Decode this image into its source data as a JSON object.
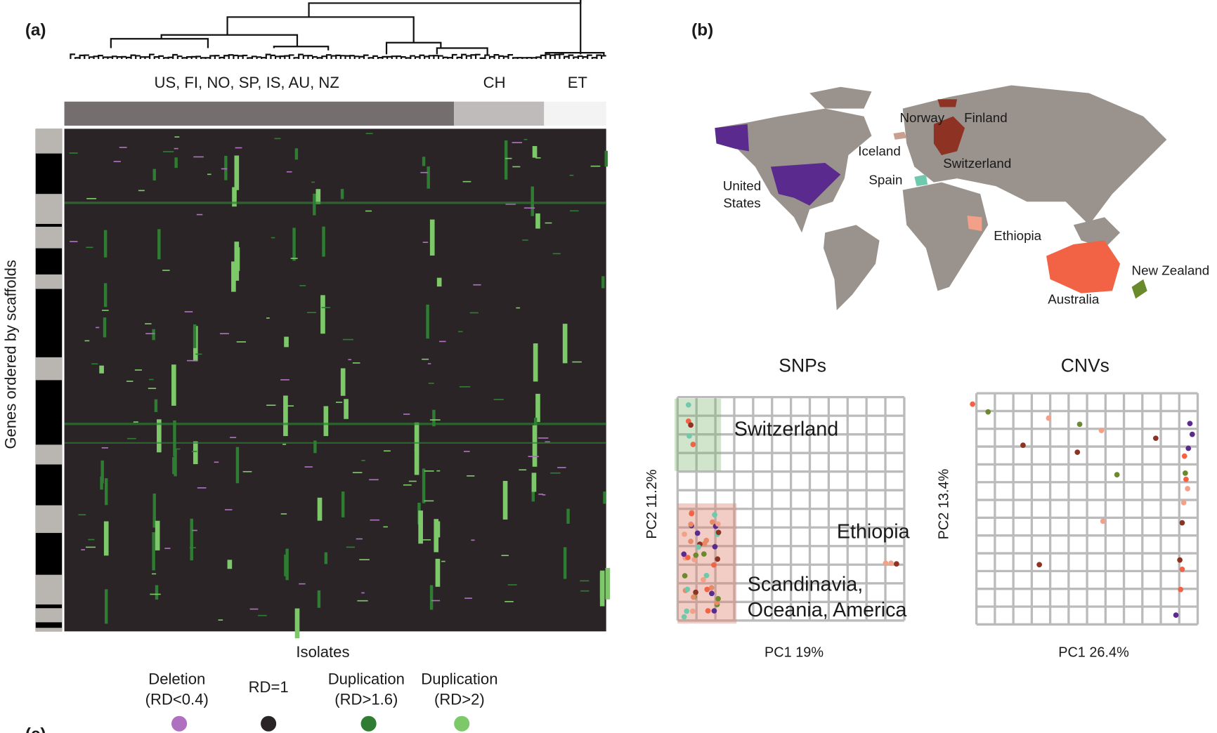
{
  "panel_a": {
    "label": "(a)",
    "groups": [
      "US, FI, NO, SP, IS, AU, NZ",
      "CH",
      "ET"
    ],
    "group_colors": [
      "#746e6f",
      "#bfbbba",
      "#f3f3f3"
    ],
    "y_label": "Genes ordered by scaffolds",
    "x_label": "Isolates",
    "legend": [
      {
        "lines": [
          "Deletion",
          "(RD<0.4)"
        ],
        "color": "#b070c0"
      },
      {
        "lines": [
          "RD=1"
        ],
        "color": "#2a2426"
      },
      {
        "lines": [
          "Duplication",
          "(RD>1.6)"
        ],
        "color": "#2f7d32"
      },
      {
        "lines": [
          "Duplication",
          "(RD>2)"
        ],
        "color": "#7dc96a"
      }
    ]
  },
  "panel_b": {
    "label": "(b)",
    "map_labels": [
      "Norway",
      "Finland",
      "Iceland",
      "Switzerland",
      "Spain",
      "United",
      "States",
      "Ethiopia",
      "New Zealand",
      "Australia"
    ],
    "snps": {
      "title": "SNPs",
      "x_label": "PC1 19%",
      "y_label": "PC2 11.2%",
      "regions": [
        "Switzerland",
        "Ethiopia",
        "Scandinavia,",
        "Oceania, America"
      ]
    },
    "cnvs": {
      "title": "CNVs",
      "x_label": "PC1 26.4%",
      "y_label": "PC2 13.4%"
    }
  },
  "panel_c": {
    "label": "(c)"
  }
}
